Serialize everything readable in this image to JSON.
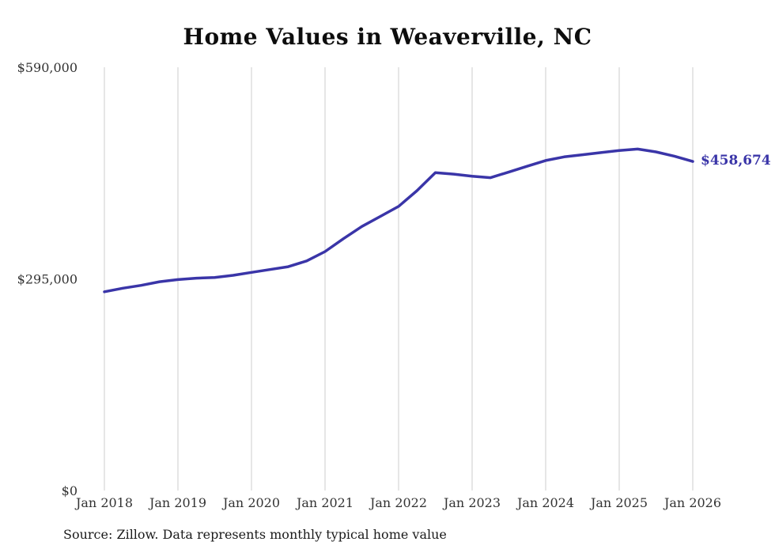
{
  "chart_data": {
    "type": "line",
    "title": "Home Values in Weaverville, NC",
    "xlabel": "",
    "ylabel": "",
    "ylim": [
      0,
      590000
    ],
    "xlim": [
      2018,
      2026
    ],
    "grid": "vertical",
    "grid_color": "#cccccc",
    "text_color": "#333333",
    "legend_position": "none",
    "end_label": "$458,674",
    "source": "Source: Zillow. Data represents monthly typical home value",
    "y_ticks": [
      {
        "label": "$0",
        "value": 0
      },
      {
        "label": "$295,000",
        "value": 295000
      },
      {
        "label": "$590,000",
        "value": 590000
      }
    ],
    "x_ticks": [
      {
        "label": "Jan 2018",
        "year": 2018
      },
      {
        "label": "Jan 2019",
        "year": 2019
      },
      {
        "label": "Jan 2020",
        "year": 2020
      },
      {
        "label": "Jan 2021",
        "year": 2021
      },
      {
        "label": "Jan 2022",
        "year": 2022
      },
      {
        "label": "Jan 2023",
        "year": 2023
      },
      {
        "label": "Jan 2024",
        "year": 2024
      },
      {
        "label": "Jan 2025",
        "year": 2025
      },
      {
        "label": "Jan 2026",
        "year": 2026
      }
    ],
    "series": [
      {
        "name": "Typical home value",
        "color": "#3a35a8",
        "x": [
          2018.0,
          2018.25,
          2018.5,
          2018.75,
          2019.0,
          2019.25,
          2019.5,
          2019.75,
          2020.0,
          2020.25,
          2020.5,
          2020.75,
          2021.0,
          2021.25,
          2021.5,
          2021.75,
          2022.0,
          2022.25,
          2022.5,
          2022.75,
          2023.0,
          2023.25,
          2023.5,
          2023.75,
          2024.0,
          2024.25,
          2024.5,
          2024.75,
          2025.0,
          2025.25,
          2025.5,
          2025.75,
          2026.0
        ],
        "values": [
          277000,
          282000,
          286000,
          291000,
          294000,
          296000,
          297000,
          300000,
          304000,
          308000,
          312000,
          320000,
          333000,
          351000,
          368000,
          382000,
          396000,
          418000,
          443000,
          441000,
          438000,
          436000,
          444000,
          452000,
          460000,
          465000,
          468000,
          471000,
          474000,
          476000,
          472000,
          466000,
          458674
        ]
      }
    ]
  }
}
